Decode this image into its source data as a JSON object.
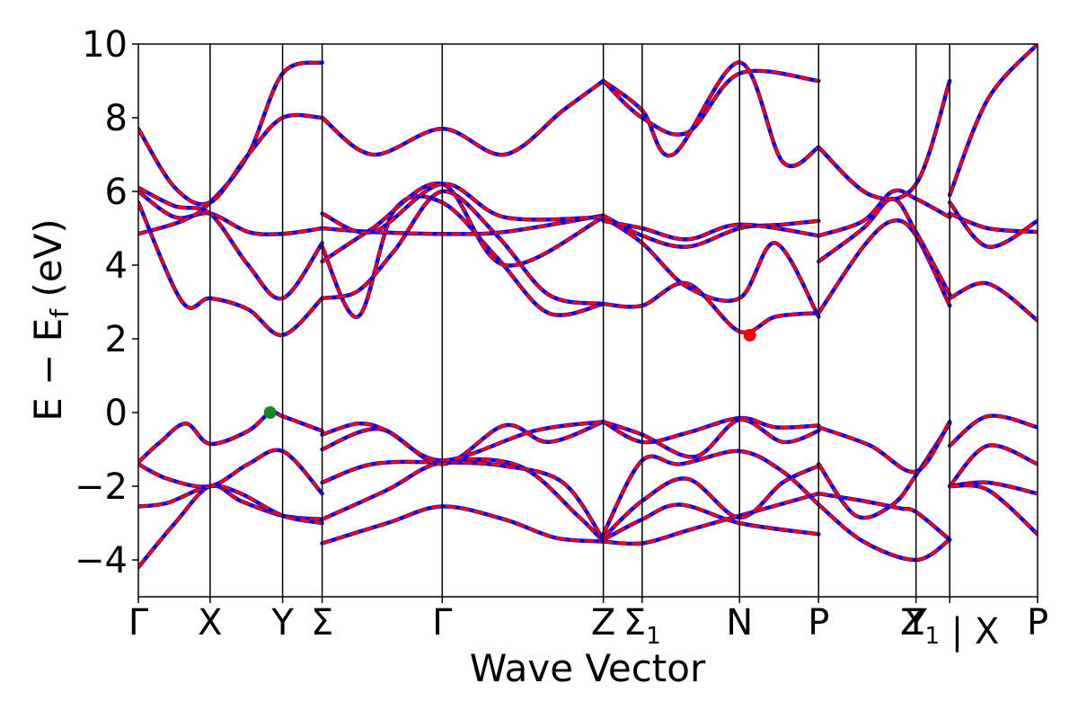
{
  "chart_data": {
    "type": "line",
    "title": "",
    "xlabel": "Wave Vector",
    "ylabel": "E − E_f (eV)",
    "ylabel_parts": {
      "main": "E − E",
      "sub": "f",
      "units": " (eV)"
    },
    "ylim": [
      -5,
      10
    ],
    "yticks": [
      -4,
      -2,
      0,
      2,
      4,
      6,
      8,
      10
    ],
    "ytick_labels": [
      "−4",
      "−2",
      "0",
      "2",
      "4",
      "6",
      "8",
      "10"
    ],
    "xlim": [
      0,
      12.28
    ],
    "high_symmetry_points": [
      {
        "label": "Γ",
        "sub": "",
        "x": 0.0
      },
      {
        "label": "X",
        "sub": "",
        "x": 0.98
      },
      {
        "label": "Y",
        "sub": "",
        "x": 1.97
      },
      {
        "label": "Σ",
        "sub": "",
        "x": 2.51
      },
      {
        "label": "Γ",
        "sub": "",
        "x": 4.15
      },
      {
        "label": "Z",
        "sub": "",
        "x": 6.35
      },
      {
        "label": "Σ",
        "sub": "1",
        "x": 6.88
      },
      {
        "label": "N",
        "sub": "",
        "x": 8.21
      },
      {
        "label": "P",
        "sub": "",
        "x": 9.29
      },
      {
        "label": "Y",
        "sub": "",
        "x": 10.62
      },
      {
        "label": "Z",
        "sub": "1",
        "x": 11.08
      },
      {
        "label": "|",
        "sub": "",
        "x": 11.08
      },
      {
        "label": "X",
        "sub": "",
        "x": 11.08
      },
      {
        "label": "P",
        "sub": "",
        "x": 12.28
      }
    ],
    "tick_label_text": "Γ X Y Σ Γ Z Σ1 N P Y|Z1 | X P",
    "markers": [
      {
        "name": "VBM",
        "x": 1.8,
        "y": 0.0,
        "color": "#1a8a1a"
      },
      {
        "name": "CBM",
        "x": 8.35,
        "y": 2.1,
        "color": "#ff0000"
      }
    ],
    "series_style": {
      "primary_color": "#ff0000",
      "overlay_color": "#0000ff",
      "overlay_dash": "dashed"
    },
    "series": [
      {
        "x": [
          0,
          0.5,
          0.98,
          1.4,
          1.97,
          2.51
        ],
        "y": [
          -4.2,
          -3.0,
          -2.0,
          -2.4,
          -2.8,
          -2.9
        ]
      },
      {
        "x": [
          0,
          0.4,
          0.98,
          1.4,
          1.97,
          2.51
        ],
        "y": [
          -2.55,
          -2.45,
          -2.0,
          -2.2,
          -2.8,
          -3.0
        ]
      },
      {
        "x": [
          0,
          0.4,
          0.98,
          1.5,
          1.97,
          2.51
        ],
        "y": [
          -1.4,
          -1.8,
          -2.0,
          -1.4,
          -1.05,
          -2.2
        ]
      },
      {
        "x": [
          0,
          0.3,
          0.65,
          0.98,
          1.5,
          1.8,
          1.97,
          2.51
        ],
        "y": [
          -1.35,
          -0.8,
          -0.3,
          -0.85,
          -0.5,
          0.0,
          -0.1,
          -0.5
        ]
      },
      {
        "x": [
          2.51,
          3.4,
          4.15,
          5.0,
          5.7,
          6.35
        ],
        "y": [
          -3.55,
          -3.0,
          -2.55,
          -2.9,
          -3.4,
          -3.5
        ]
      },
      {
        "x": [
          2.51,
          3.4,
          4.15,
          5.2,
          6.0,
          6.35
        ],
        "y": [
          -2.9,
          -2.1,
          -1.35,
          -1.45,
          -2.8,
          -3.5
        ]
      },
      {
        "x": [
          2.51,
          3.2,
          4.15,
          5.0,
          5.8,
          6.35
        ],
        "y": [
          -1.9,
          -1.4,
          -1.35,
          -1.45,
          -1.9,
          -3.45
        ]
      },
      {
        "x": [
          2.51,
          3.3,
          4.15,
          5.0,
          5.6,
          6.35
        ],
        "y": [
          -1.0,
          -0.45,
          -1.4,
          -0.35,
          -0.8,
          -0.25
        ]
      },
      {
        "x": [
          2.51,
          3.0,
          3.4,
          4.15,
          5.4,
          6.35
        ],
        "y": [
          -0.6,
          -0.3,
          -0.5,
          -1.3,
          -0.5,
          -0.25
        ]
      },
      {
        "x": [
          6.35,
          6.88,
          7.5,
          8.21,
          9.29
        ],
        "y": [
          -3.5,
          -3.55,
          -3.2,
          -2.8,
          -2.2
        ]
      },
      {
        "x": [
          6.35,
          6.88,
          7.4,
          8.21,
          9.29
        ],
        "y": [
          -3.45,
          -2.9,
          -2.5,
          -3.0,
          -3.3
        ]
      },
      {
        "x": [
          6.35,
          6.88,
          7.5,
          8.21,
          8.8,
          9.29
        ],
        "y": [
          -3.4,
          -2.4,
          -1.8,
          -2.85,
          -1.9,
          -1.45
        ]
      },
      {
        "x": [
          6.35,
          6.88,
          7.4,
          8.21,
          8.8,
          9.29
        ],
        "y": [
          -3.3,
          -1.3,
          -1.4,
          -1.05,
          -1.6,
          -2.5
        ]
      },
      {
        "x": [
          6.35,
          6.88,
          7.5,
          8.21,
          8.7,
          9.29
        ],
        "y": [
          -0.25,
          -0.8,
          -0.55,
          -0.15,
          -0.4,
          -0.35
        ]
      },
      {
        "x": [
          6.35,
          6.88,
          7.6,
          8.21,
          8.8,
          9.29
        ],
        "y": [
          -0.25,
          -0.6,
          -1.2,
          -0.2,
          -0.8,
          -0.5
        ]
      },
      {
        "x": [
          9.29,
          9.9,
          10.62,
          11.08
        ],
        "y": [
          -2.5,
          -3.5,
          -4.0,
          -3.45
        ]
      },
      {
        "x": [
          9.29,
          9.9,
          10.4,
          10.62,
          11.08
        ],
        "y": [
          -2.2,
          -2.4,
          -2.6,
          -2.7,
          -3.45
        ]
      },
      {
        "x": [
          9.29,
          9.8,
          10.3,
          10.62,
          11.08
        ],
        "y": [
          -1.4,
          -2.8,
          -2.5,
          -1.7,
          -0.3
        ]
      },
      {
        "x": [
          9.29,
          10.0,
          10.62,
          11.08
        ],
        "y": [
          -0.4,
          -0.9,
          -1.6,
          -0.25
        ]
      },
      {
        "x": [
          11.08,
          11.6,
          12.28
        ],
        "y": [
          -0.9,
          -0.1,
          -0.4
        ]
      },
      {
        "x": [
          11.08,
          11.6,
          12.28
        ],
        "y": [
          -2.0,
          -0.9,
          -1.4
        ]
      },
      {
        "x": [
          11.08,
          11.6,
          12.28
        ],
        "y": [
          -2.0,
          -1.9,
          -2.2
        ]
      },
      {
        "x": [
          11.08,
          11.6,
          12.28
        ],
        "y": [
          -2.0,
          -2.1,
          -3.3
        ]
      },
      {
        "x": [
          0,
          0.6,
          0.98,
          1.5,
          1.97,
          2.51
        ],
        "y": [
          5.7,
          3.0,
          3.1,
          2.8,
          2.1,
          3.1
        ]
      },
      {
        "x": [
          0,
          0.5,
          0.98,
          1.5,
          1.97,
          2.51
        ],
        "y": [
          6.0,
          5.3,
          5.4,
          4.9,
          4.85,
          5.0
        ]
      },
      {
        "x": [
          0,
          0.5,
          0.98,
          1.5,
          1.97,
          2.51
        ],
        "y": [
          6.1,
          5.6,
          5.4,
          4.0,
          3.1,
          4.6
        ]
      },
      {
        "x": [
          0,
          0.6,
          0.98,
          1.5,
          1.97,
          2.51
        ],
        "y": [
          4.85,
          5.2,
          5.7,
          7.0,
          9.2,
          9.5
        ]
      },
      {
        "x": [
          0,
          0.5,
          0.98,
          1.5,
          1.97,
          2.51
        ],
        "y": [
          7.7,
          6.1,
          5.7,
          7.0,
          8.0,
          8.0
        ]
      },
      {
        "x": [
          2.51,
          3.0,
          3.5,
          4.15,
          4.9,
          5.6,
          6.35
        ],
        "y": [
          4.5,
          2.6,
          5.5,
          5.7,
          4.2,
          2.7,
          2.95
        ]
      },
      {
        "x": [
          2.51,
          3.0,
          3.5,
          4.15,
          4.9,
          5.6,
          6.35
        ],
        "y": [
          3.1,
          3.3,
          4.4,
          6.0,
          4.8,
          3.2,
          2.95
        ]
      },
      {
        "x": [
          2.51,
          3.2,
          4.15,
          5.0,
          6.35
        ],
        "y": [
          5.0,
          4.9,
          4.85,
          4.9,
          5.35
        ]
      },
      {
        "x": [
          2.51,
          3.2,
          4.15,
          5.0,
          6.35
        ],
        "y": [
          4.1,
          5.0,
          6.2,
          4.0,
          5.3
        ]
      },
      {
        "x": [
          2.51,
          3.2,
          4.15,
          5.0,
          6.35
        ],
        "y": [
          5.4,
          4.9,
          6.2,
          5.3,
          5.3
        ]
      },
      {
        "x": [
          2.51,
          3.2,
          4.15,
          5.0,
          5.8,
          6.35
        ],
        "y": [
          8.0,
          7.0,
          7.7,
          7.0,
          8.2,
          9.0
        ]
      },
      {
        "x": [
          6.35,
          6.88,
          7.5,
          8.21,
          8.7,
          9.29
        ],
        "y": [
          2.95,
          2.9,
          3.5,
          2.2,
          2.6,
          2.7
        ]
      },
      {
        "x": [
          6.35,
          6.88,
          7.5,
          8.21,
          8.7,
          9.29
        ],
        "y": [
          5.3,
          4.6,
          3.4,
          3.1,
          4.6,
          2.6
        ]
      },
      {
        "x": [
          6.35,
          6.88,
          7.5,
          8.21,
          8.8,
          9.29
        ],
        "y": [
          5.35,
          4.8,
          4.5,
          5.0,
          5.1,
          5.2
        ]
      },
      {
        "x": [
          6.35,
          6.88,
          7.5,
          8.21,
          9.29
        ],
        "y": [
          5.2,
          5.0,
          4.7,
          5.1,
          4.8
        ]
      },
      {
        "x": [
          6.35,
          6.88,
          7.5,
          8.21,
          9.29
        ],
        "y": [
          9.0,
          8.0,
          7.6,
          9.2,
          9.0
        ]
      },
      {
        "x": [
          6.35,
          6.88,
          7.3,
          8.21,
          8.8,
          9.29
        ],
        "y": [
          9.0,
          8.2,
          7.0,
          9.5,
          6.8,
          7.2
        ]
      },
      {
        "x": [
          9.29,
          9.9,
          10.3,
          10.62,
          11.08
        ],
        "y": [
          2.7,
          4.5,
          5.2,
          4.8,
          2.9
        ]
      },
      {
        "x": [
          9.29,
          9.9,
          10.3,
          10.62,
          11.08
        ],
        "y": [
          4.1,
          5.0,
          5.8,
          4.9,
          3.2
        ]
      },
      {
        "x": [
          9.29,
          9.9,
          10.3,
          10.62,
          11.08
        ],
        "y": [
          4.8,
          5.2,
          6.0,
          5.8,
          5.3
        ]
      },
      {
        "x": [
          9.29,
          10.0,
          10.62,
          11.08
        ],
        "y": [
          7.2,
          5.9,
          6.2,
          9.0
        ]
      },
      {
        "x": [
          11.08,
          11.6,
          12.28
        ],
        "y": [
          3.1,
          3.5,
          2.5
        ]
      },
      {
        "x": [
          11.08,
          11.6,
          12.28
        ],
        "y": [
          5.7,
          4.5,
          5.2
        ]
      },
      {
        "x": [
          11.08,
          11.6,
          12.28
        ],
        "y": [
          5.4,
          5.0,
          4.9
        ]
      },
      {
        "x": [
          11.08,
          11.6,
          12.28
        ],
        "y": [
          5.9,
          8.5,
          10.0
        ]
      }
    ]
  }
}
